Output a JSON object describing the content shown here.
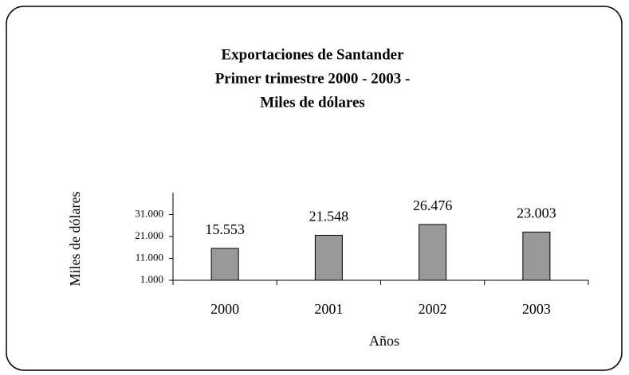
{
  "chart_data": {
    "type": "bar",
    "title": [
      "Exportaciones de Santander",
      "Primer trimestre 2000 - 2003 -",
      "Miles de dólares"
    ],
    "categories": [
      "2000",
      "2001",
      "2002",
      "2003"
    ],
    "values": [
      15553,
      21548,
      26476,
      23003
    ],
    "value_labels": [
      "15.553",
      "21.548",
      "26.476",
      "23.003"
    ],
    "color": "#999999",
    "x_label": "Años",
    "y_label": "Miles de dólares",
    "ylim": [
      1000,
      41000
    ],
    "yticks": [
      {
        "value": 1000,
        "label": "1.000"
      },
      {
        "value": 11000,
        "label": "11.000"
      },
      {
        "value": 21000,
        "label": "21.000"
      },
      {
        "value": 31000,
        "label": "31.000"
      }
    ],
    "grid": false
  }
}
